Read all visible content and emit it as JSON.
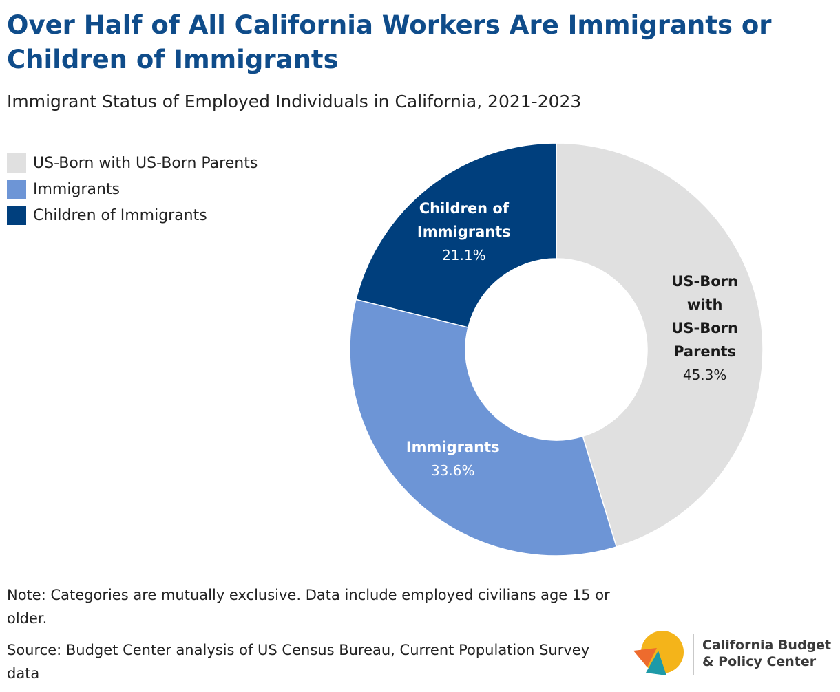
{
  "header": {
    "title": "Over Half of All California Workers Are Immigrants or Children of Immigrants",
    "subtitle": "Immigrant Status of Employed Individuals in California, 2021-2023"
  },
  "legend": {
    "items": [
      {
        "label": "US-Born with US-Born Parents",
        "color": "#e0e0e0"
      },
      {
        "label": "Immigrants",
        "color": "#6d95d6"
      },
      {
        "label": "Children of Immigrants",
        "color": "#003f7d"
      }
    ]
  },
  "chart_data": {
    "type": "pie",
    "variant": "donut",
    "title": "Over Half of All California Workers Are Immigrants or Children of Immigrants",
    "subtitle": "Immigrant Status of Employed Individuals in California, 2021-2023",
    "legend_position": "top-left",
    "slices": [
      {
        "name": "US-Born with US-Born Parents",
        "value": 45.3,
        "label_lines": [
          "US-Born",
          "with",
          "US-Born",
          "Parents"
        ],
        "value_label": "45.3%",
        "color": "#e0e0e0",
        "text_color": "#1a1a1a"
      },
      {
        "name": "Immigrants",
        "value": 33.6,
        "label_lines": [
          "Immigrants"
        ],
        "value_label": "33.6%",
        "color": "#6d95d6",
        "text_color": "#ffffff"
      },
      {
        "name": "Children of Immigrants",
        "value": 21.1,
        "label_lines": [
          "Children of",
          "Immigrants"
        ],
        "value_label": "21.1%",
        "color": "#003f7d",
        "text_color": "#ffffff"
      }
    ]
  },
  "footer": {
    "note": "Note: Categories are mutually exclusive. Data include employed civilians age 15 or older.",
    "source": "Source: Budget Center analysis of US Census Bureau, Current Population Survey data"
  },
  "logo": {
    "line1": "California Budget",
    "line2": "& Policy Center",
    "colors": {
      "yellow": "#f4b41a",
      "orange": "#ee6b2d",
      "teal": "#1e9aa8"
    }
  }
}
